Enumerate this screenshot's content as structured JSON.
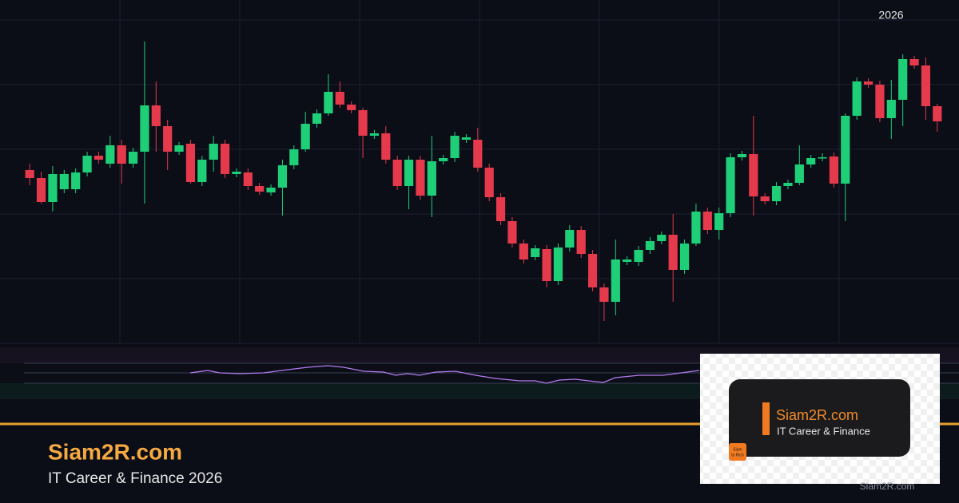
{
  "chart_data": {
    "type": "candlestick",
    "annotation": "2026",
    "up_color": "#1fcf78",
    "down_color": "#e53a4c",
    "grid": true,
    "ylim": [
      0,
      405
    ],
    "open": [
      217,
      207,
      177,
      193,
      193,
      214,
      235,
      225,
      248,
      225,
      240,
      298,
      272,
      240,
      250,
      202,
      230,
      250,
      212,
      214,
      197,
      189,
      195,
      223,
      243,
      275,
      288,
      315,
      299,
      292,
      260,
      263,
      230,
      197,
      230,
      185,
      228,
      232,
      255,
      255,
      220,
      183,
      153,
      125,
      108,
      118,
      78,
      120,
      142,
      112,
      70,
      52,
      102,
      102,
      117,
      128,
      136,
      92,
      125,
      165,
      142,
      163,
      233,
      237,
      184,
      178,
      197,
      201,
      224,
      232,
      234,
      200,
      285,
      328,
      324,
      282,
      305,
      356,
      348,
      297
    ],
    "high": [
      225,
      215,
      222,
      217,
      219,
      240,
      240,
      260,
      255,
      245,
      378,
      328,
      280,
      252,
      255,
      235,
      260,
      255,
      219,
      219,
      201,
      199,
      230,
      248,
      290,
      293,
      337,
      328,
      303,
      295,
      267,
      272,
      235,
      235,
      235,
      260,
      236,
      265,
      262,
      270,
      225,
      188,
      158,
      130,
      123,
      123,
      125,
      148,
      147,
      117,
      75,
      130,
      109,
      122,
      133,
      140,
      162,
      130,
      175,
      170,
      170,
      238,
      241,
      285,
      188,
      202,
      205,
      248,
      236,
      238,
      239,
      288,
      333,
      332,
      329,
      330,
      362,
      360,
      358,
      300
    ],
    "low": [
      198,
      175,
      165,
      188,
      188,
      209,
      225,
      220,
      200,
      220,
      175,
      240,
      217,
      236,
      200,
      197,
      215,
      207,
      208,
      192,
      186,
      185,
      160,
      218,
      240,
      270,
      285,
      295,
      288,
      232,
      256,
      225,
      192,
      168,
      180,
      158,
      224,
      227,
      251,
      215,
      178,
      148,
      120,
      100,
      104,
      70,
      73,
      115,
      107,
      65,
      28,
      35,
      98,
      97,
      112,
      124,
      52,
      87,
      122,
      137,
      130,
      158,
      229,
      160,
      174,
      173,
      193,
      198,
      220,
      228,
      195,
      153,
      280,
      320,
      277,
      256,
      272,
      344,
      280,
      265
    ],
    "close": [
      207,
      177,
      212,
      212,
      214,
      235,
      230,
      248,
      225,
      240,
      298,
      272,
      240,
      248,
      202,
      230,
      250,
      212,
      215,
      197,
      190,
      195,
      223,
      243,
      275,
      288,
      315,
      299,
      292,
      260,
      263,
      230,
      197,
      230,
      185,
      228,
      232,
      260,
      258,
      220,
      183,
      153,
      125,
      105,
      119,
      78,
      120,
      142,
      112,
      70,
      52,
      105,
      105,
      117,
      128,
      136,
      92,
      125,
      165,
      142,
      163,
      233,
      237,
      184,
      178,
      197,
      201,
      224,
      232,
      233,
      200,
      285,
      328,
      324,
      282,
      305,
      356,
      348,
      297,
      278
    ]
  },
  "footer": {
    "site": "Siam2R.com",
    "tagline": "IT Career & Finance 2026",
    "watermark": "Siam2R.com"
  },
  "logo_card": {
    "title": "Siam2R.com",
    "subtitle": "IT Career & Finance",
    "badge": [
      "Siam",
      "to Rich"
    ]
  }
}
